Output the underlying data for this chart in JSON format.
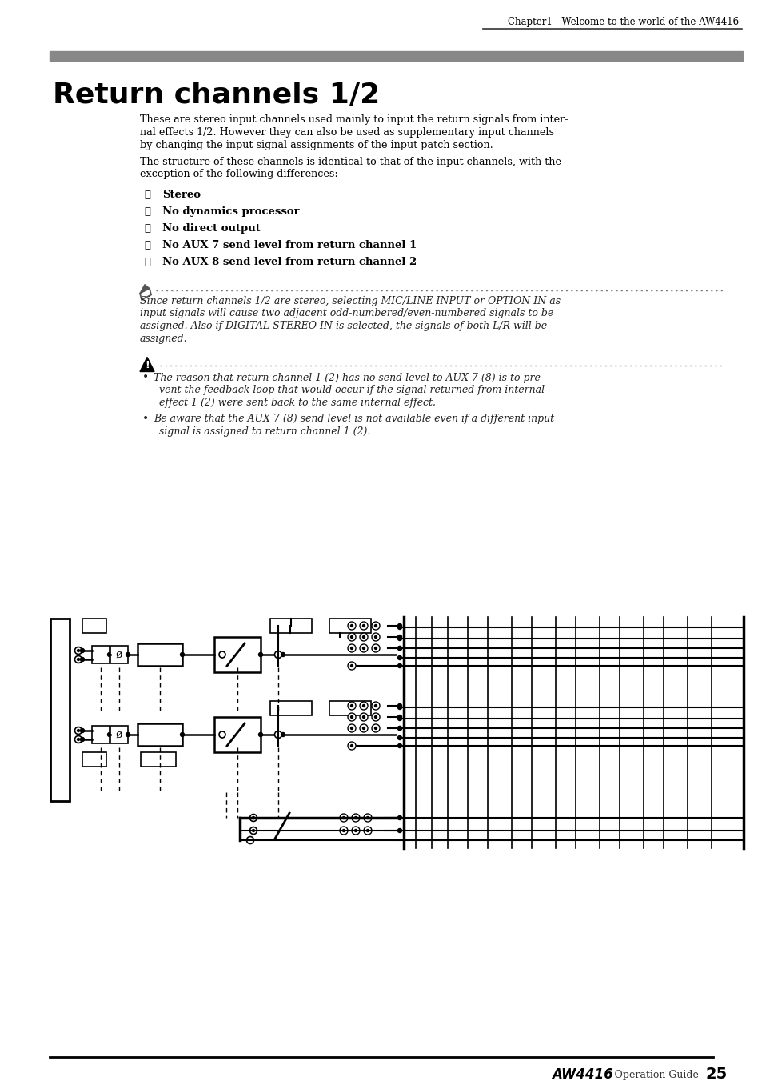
{
  "page_title": "Return channels 1/2",
  "header_text": "Chapter1—Welcome to the world of the AW4416",
  "body_text_1_lines": [
    "These are stereo input channels used mainly to input the return signals from inter-",
    "nal effects 1/2. However they can also be used as supplementary input channels",
    "by changing the input signal assignments of the input patch section."
  ],
  "body_text_2_lines": [
    "The structure of these channels is identical to that of the input channels, with the",
    "exception of the following differences:"
  ],
  "numbered_items": [
    "Stereo",
    "No dynamics processor",
    "No direct output",
    "No AUX 7 send level from return channel 1",
    "No AUX 8 send level from return channel 2"
  ],
  "note_lines": [
    "Since return channels 1/2 are stereo, selecting MIC/LINE INPUT or OPTION IN as",
    "input signals will cause two adjacent odd-numbered/even-numbered signals to be",
    "assigned. Also if DIGITAL STEREO IN is selected, the signals of both L/R will be",
    "assigned."
  ],
  "warning_bullets": [
    [
      "The reason that return channel 1 (2) has no send level to AUX 7 (8) is to pre-",
      "vent the feedback loop that would occur if the signal returned from internal",
      "effect 1 (2) were sent back to the same internal effect."
    ],
    [
      "Be aware that the AUX 7 (8) send level is not available even if a different input",
      "signal is assigned to return channel 1 (2)."
    ]
  ],
  "footer_dash": "— Operation Guide",
  "footer_brand": "AW4416",
  "page_number": "25",
  "bg_color": "#ffffff",
  "text_color": "#000000",
  "gray_bar_color": "#888888"
}
